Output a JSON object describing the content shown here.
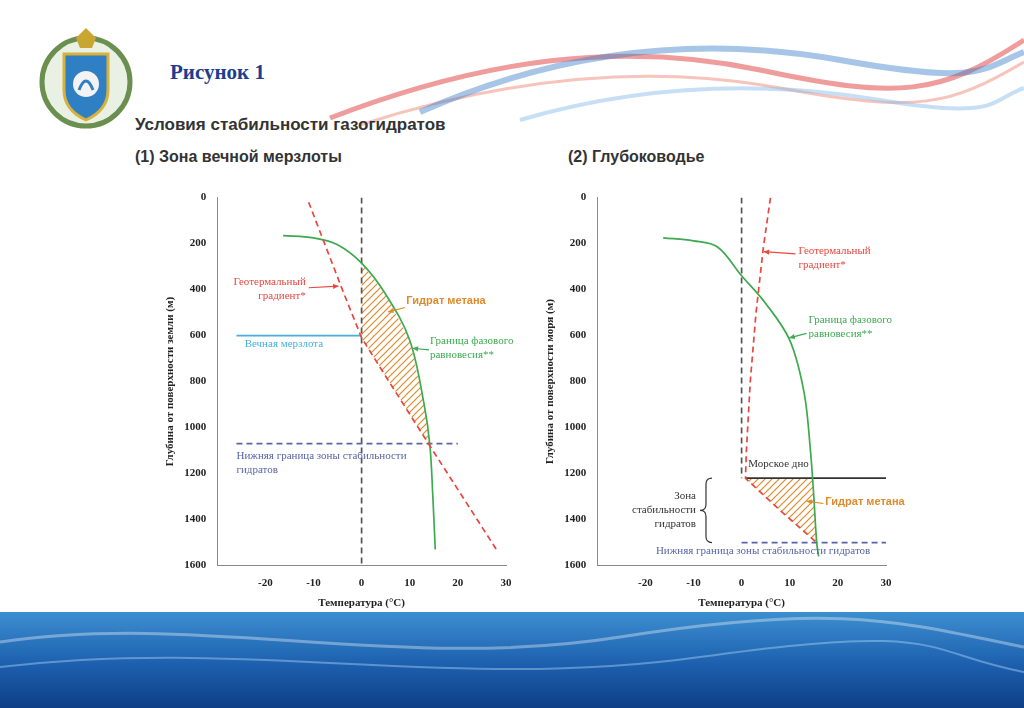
{
  "header": {
    "figure_label": "Рисунок 1",
    "title": "Условия стабильности газогидратов"
  },
  "chart_data": [
    {
      "type": "line",
      "title": "(1) Зона вечной мерзлоты",
      "x_label": "Температура (°C)",
      "y_label": "Глубина от поверхности земли (м)",
      "xlim": [
        -30,
        30
      ],
      "xticks": [
        -20,
        -10,
        0,
        10,
        20,
        30
      ],
      "ylim": [
        0,
        1600
      ],
      "yticks": [
        0,
        200,
        400,
        600,
        800,
        1000,
        1200,
        1400,
        1600
      ],
      "grid": false,
      "series": [
        {
          "name": "Геотермальный градиент*",
          "color": "#e8463e",
          "line_style": "dashed",
          "x": [
            -11,
            -4,
            0,
            5.7,
            14.2,
            28
          ],
          "y": [
            20,
            400,
            610,
            800,
            1080,
            1530
          ]
        },
        {
          "name": "Граница фазового равновесия**",
          "color": "#3daa4f",
          "line_style": "solid",
          "x": [
            -16.3,
            -10,
            -5,
            0,
            5,
            10,
            13,
            14.2,
            14.8,
            15.3
          ],
          "y": [
            165,
            175,
            205,
            285,
            420,
            620,
            900,
            1080,
            1300,
            1530
          ]
        },
        {
          "name": "Гидрат метана",
          "type": "area",
          "color": "#e08a2c",
          "x": [
            0,
            5,
            10,
            13,
            14.2,
            5.7,
            0,
            0
          ],
          "y": [
            285,
            420,
            620,
            900,
            1080,
            800,
            610,
            285
          ]
        },
        {
          "name": "Вечная мерзлота",
          "color": "#45b0dc",
          "line_style": "solid",
          "x": [
            -26,
            0
          ],
          "y": [
            600,
            600
          ]
        },
        {
          "name": "Нижняя граница зоны стабильности гидратов",
          "color": "#5865a8",
          "line_style": "dashed",
          "x": [
            -26,
            20
          ],
          "y": [
            1070,
            1070
          ]
        },
        {
          "color": "#555555",
          "line_style": "dashed",
          "x": [
            0,
            0
          ],
          "y": [
            0,
            1600
          ]
        }
      ],
      "annotations": []
    },
    {
      "type": "line",
      "title": "(2) Глубоководье",
      "x_label": "Температура (°C)",
      "y_label": "Глубина от поверхности моря (м)",
      "xlim": [
        -30,
        30
      ],
      "xticks": [
        -20,
        -10,
        0,
        10,
        20,
        30
      ],
      "ylim": [
        0,
        1600
      ],
      "yticks": [
        0,
        200,
        400,
        600,
        800,
        1000,
        1200,
        1400,
        1600
      ],
      "grid": false,
      "series": [
        {
          "name": "Геотермальный градиент*",
          "color": "#e8463e",
          "line_style": "dashed",
          "x": [
            6,
            4.5,
            3,
            1.8,
            1,
            0.8,
            8,
            15.6
          ],
          "y": [
            0,
            220,
            500,
            800,
            1100,
            1220,
            1360,
            1500
          ]
        },
        {
          "name": "Граница фазового равновесия**",
          "color": "#3daa4f",
          "line_style": "solid",
          "x": [
            -16.3,
            -10,
            -5,
            0,
            5,
            10,
            13,
            14.3,
            15,
            15.6,
            16
          ],
          "y": [
            175,
            188,
            215,
            340,
            460,
            620,
            850,
            1100,
            1300,
            1500,
            1560
          ]
        },
        {
          "name": "Гидрат метана",
          "type": "area",
          "color": "#e08a2c",
          "x": [
            0.8,
            14.7,
            15,
            15.6,
            8,
            0.8
          ],
          "y": [
            1220,
            1220,
            1300,
            1500,
            1360,
            1220
          ]
        },
        {
          "name": "Морское дно",
          "color": "#333333",
          "line_style": "solid",
          "x": [
            0.8,
            30
          ],
          "y": [
            1220,
            1220
          ]
        },
        {
          "name": "Нижняя граница зоны стабильности гидратов",
          "color": "#5865a8",
          "line_style": "dashed",
          "x": [
            0,
            30
          ],
          "y": [
            1500,
            1500
          ]
        },
        {
          "color": "#555555",
          "line_style": "dashed",
          "x": [
            0,
            0
          ],
          "y": [
            0,
            1220
          ]
        }
      ],
      "annotations": [
        {
          "text": "Зона стабильности гидратов",
          "y": [
            1220,
            1500
          ]
        }
      ]
    }
  ]
}
